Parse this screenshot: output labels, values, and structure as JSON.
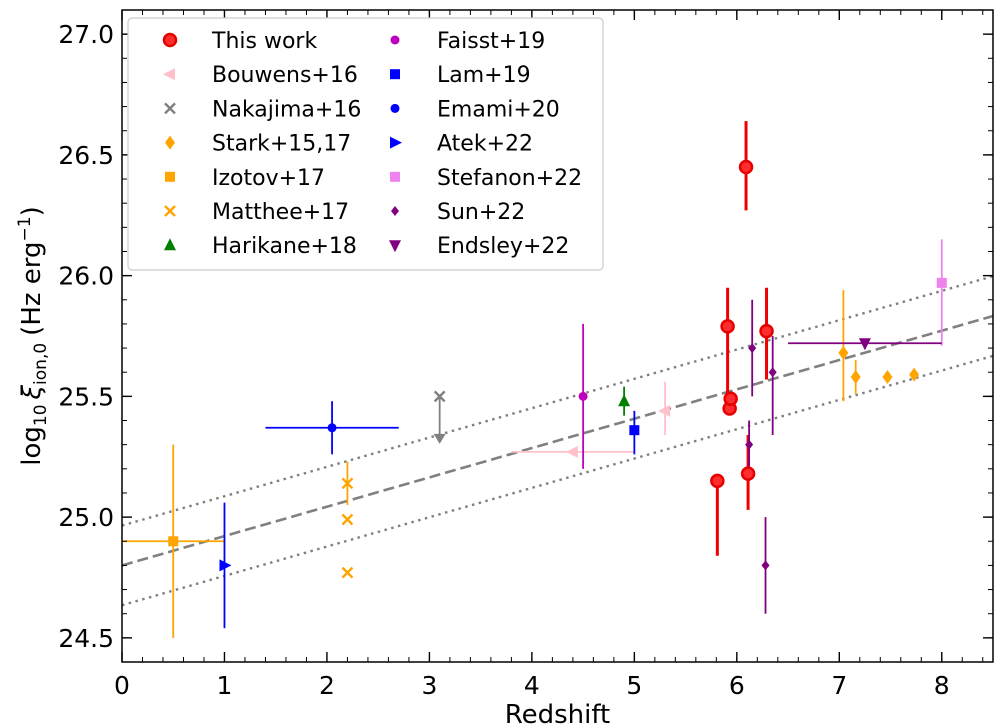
{
  "chart_data": {
    "type": "scatter",
    "xlabel": "Redshift",
    "ylabel_prefix": "log",
    "ylabel_sub": "10",
    "ylabel_xi": "ξ",
    "ylabel_xi_sub": "ion,0",
    "ylabel_units": "(Hz erg",
    "ylabel_units_sup": "−1",
    "ylabel_close": ")",
    "xlim": [
      0,
      8.5
    ],
    "ylim": [
      24.4,
      27.1
    ],
    "x_ticks": [
      "0",
      "1",
      "2",
      "3",
      "4",
      "5",
      "6",
      "7",
      "8"
    ],
    "y_ticks": [
      "24.5",
      "25.0",
      "25.5",
      "26.0",
      "26.5",
      "27.0"
    ],
    "grid": false,
    "legend_position": "top-left",
    "fit_line": {
      "intercept": 24.8,
      "slope": 0.1215,
      "scatter": 0.165,
      "color": "#808080"
    },
    "series": [
      {
        "name": "This work",
        "marker": "circle-big",
        "color": "#ff2d2d",
        "edge": "#e60000",
        "errcolor": "#ee0000",
        "lw": 3,
        "points": [
          {
            "x": 5.81,
            "y": 25.15,
            "yerr": [
              0.31,
              0.0
            ]
          },
          {
            "x": 5.91,
            "y": 25.79,
            "yerr": [
              0.29,
              0.16
            ]
          },
          {
            "x": 5.93,
            "y": 25.45,
            "yerr": [
              0.0,
              0.0
            ]
          },
          {
            "x": 5.94,
            "y": 25.49,
            "yerr": [
              0.0,
              0.0
            ]
          },
          {
            "x": 6.09,
            "y": 26.45,
            "yerr": [
              0.18,
              0.19
            ]
          },
          {
            "x": 6.11,
            "y": 25.18,
            "yerr": [
              0.15,
              0.16
            ]
          },
          {
            "x": 6.29,
            "y": 25.77,
            "yerr": [
              0.2,
              0.18
            ]
          }
        ]
      },
      {
        "name": "Bouwens+16",
        "marker": "triangle-left",
        "color": "#ffc0cb",
        "points": [
          {
            "x": 4.4,
            "y": 25.27,
            "xerr": [
              0.6,
              0.6
            ]
          },
          {
            "x": 5.3,
            "y": 25.44,
            "xerr": [
              0.0,
              0.0
            ],
            "yerr": [
              0.1,
              0.12
            ]
          }
        ]
      },
      {
        "name": "Nakajima+16",
        "marker": "x",
        "color": "#808080",
        "points": [
          {
            "x": 3.1,
            "y": 25.5,
            "arrow_to": 25.32
          }
        ]
      },
      {
        "name": "Stark+15,17",
        "marker": "diamond",
        "color": "#ffa500",
        "points": [
          {
            "x": 7.04,
            "y": 25.68,
            "yerr": [
              0.2,
              0.26
            ]
          },
          {
            "x": 7.16,
            "y": 25.58,
            "yerr": [
              0.07,
              0.07
            ]
          },
          {
            "x": 7.47,
            "y": 25.58
          },
          {
            "x": 7.73,
            "y": 25.59
          }
        ]
      },
      {
        "name": "Izotov+17",
        "marker": "square",
        "color": "#ffa500",
        "points": [
          {
            "x": 0.5,
            "y": 24.9,
            "xerr": [
              0.5,
              0.5
            ],
            "yerr": [
              0.4,
              0.4
            ]
          }
        ]
      },
      {
        "name": "Matthee+17",
        "marker": "x",
        "color": "#ffa500",
        "points": [
          {
            "x": 2.2,
            "y": 25.14,
            "yerr": [
              0.09,
              0.09
            ]
          },
          {
            "x": 2.2,
            "y": 24.99
          },
          {
            "x": 2.2,
            "y": 24.77
          }
        ]
      },
      {
        "name": "Harikane+18",
        "marker": "triangle-up",
        "color": "#007f00",
        "points": [
          {
            "x": 4.9,
            "y": 25.48,
            "yerr": [
              0.06,
              0.06
            ]
          }
        ]
      },
      {
        "name": "Faisst+19",
        "marker": "circle",
        "color": "#bf00bf",
        "points": [
          {
            "x": 4.5,
            "y": 25.5,
            "yerr": [
              0.3,
              0.3
            ]
          }
        ]
      },
      {
        "name": "Lam+19",
        "marker": "square",
        "color": "#0000ff",
        "points": [
          {
            "x": 5.0,
            "y": 25.36,
            "yerr": [
              0.1,
              0.08
            ]
          }
        ]
      },
      {
        "name": "Emami+20",
        "marker": "circle",
        "color": "#0000ff",
        "points": [
          {
            "x": 2.05,
            "y": 25.37,
            "xerr": [
              0.65,
              0.65
            ],
            "yerr": [
              0.11,
              0.11
            ]
          }
        ]
      },
      {
        "name": "Atek+22",
        "marker": "triangle-right",
        "color": "#0000ff",
        "points": [
          {
            "x": 1.0,
            "y": 24.8,
            "yerr": [
              0.26,
              0.26
            ]
          }
        ]
      },
      {
        "name": "Stefanon+22",
        "marker": "square",
        "color": "#ee82ee",
        "points": [
          {
            "x": 8.0,
            "y": 25.97,
            "yerr": [
              0.26,
              0.18
            ]
          }
        ]
      },
      {
        "name": "Sun+22",
        "marker": "diamond-small",
        "color": "#800080",
        "points": [
          {
            "x": 6.15,
            "y": 25.7,
            "yerr": [
              0.2,
              0.2
            ]
          },
          {
            "x": 6.12,
            "y": 25.3,
            "yerr": [
              0.1,
              0.1
            ]
          },
          {
            "x": 6.35,
            "y": 25.6,
            "yerr": [
              0.26,
              0.15
            ]
          },
          {
            "x": 6.28,
            "y": 24.8,
            "yerr": [
              0.2,
              0.2
            ]
          }
        ]
      },
      {
        "name": "Endsley+22",
        "marker": "triangle-down",
        "color": "#800080",
        "points": [
          {
            "x": 7.25,
            "y": 25.72,
            "xerr": [
              0.75,
              0.75
            ]
          }
        ]
      }
    ]
  }
}
